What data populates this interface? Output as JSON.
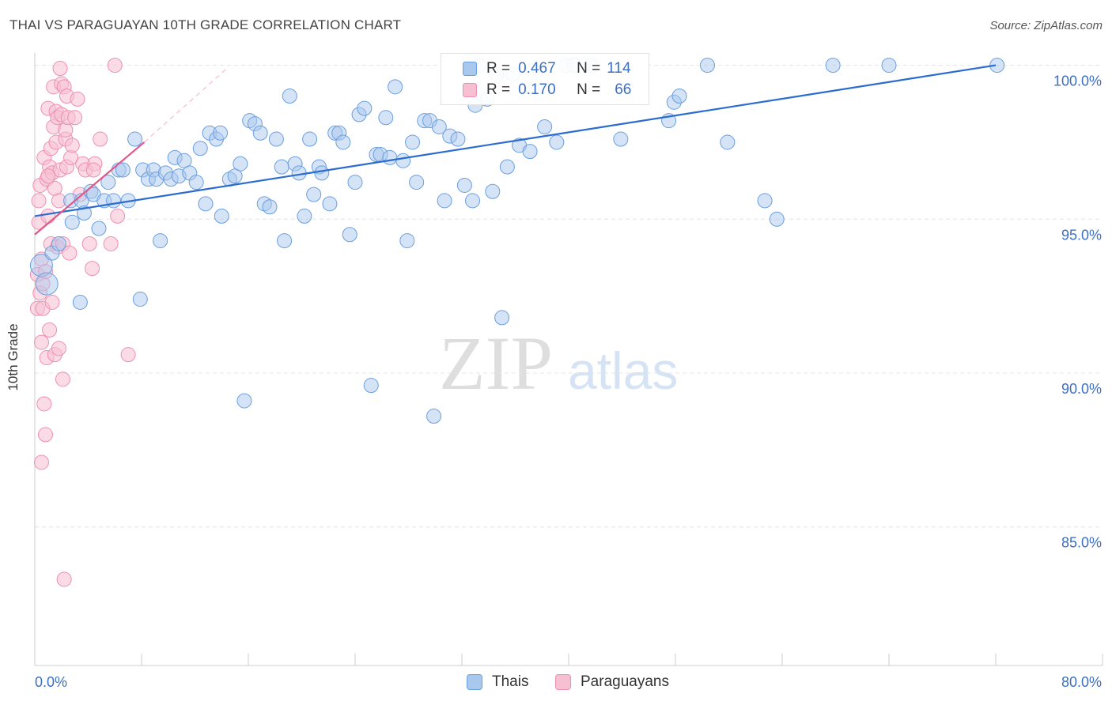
{
  "header": {
    "title": "THAI VS PARAGUAYAN 10TH GRADE CORRELATION CHART",
    "source": "Source: ZipAtlas.com"
  },
  "watermark": {
    "zip": "ZIP",
    "atlas": "atlas"
  },
  "colors": {
    "thai": "#6a9fdf",
    "thai_fill": "#a9c8ee",
    "thai_line": "#2a6ccf",
    "paraguayan": "#ee8fb0",
    "paraguayan_fill": "#f7bfd2",
    "paraguayan_line": "#e0588a",
    "axis_value": "#3c6fc4"
  },
  "legend": {
    "thai": {
      "r_label": "R =",
      "r_value": "0.467",
      "n_label": "N =",
      "n_value": "114"
    },
    "paraguayan": {
      "r_label": "R =",
      "r_value": "0.170",
      "n_label": "N =",
      "n_value": "66"
    }
  },
  "bottom_legend": {
    "thai": "Thais",
    "paraguayan": "Paraguayans"
  },
  "chart_data": {
    "type": "scatter",
    "title": "THAI VS PARAGUAYAN 10TH GRADE CORRELATION CHART",
    "xlabel": "",
    "ylabel": "10th Grade",
    "xlim": [
      0,
      80
    ],
    "ylim": [
      80.5,
      100.4
    ],
    "x_tick_labels": [
      "0.0%",
      "80.0%"
    ],
    "y_ticks": [
      100,
      95,
      90,
      85
    ],
    "y_tick_labels": [
      "100.0%",
      "95.0%",
      "90.0%",
      "85.0%"
    ],
    "grid": true,
    "legend_position": "top-center",
    "series": [
      {
        "name": "Thais",
        "r": 0.467,
        "n": 114,
        "trend": {
          "x": [
            0.0,
            72.0
          ],
          "y": [
            95.1,
            100.0
          ]
        },
        "points": [
          [
            0.5,
            93.5
          ],
          [
            0.9,
            92.9
          ],
          [
            1.3,
            93.9
          ],
          [
            1.8,
            94.2
          ],
          [
            2.7,
            95.6
          ],
          [
            2.8,
            94.9
          ],
          [
            3.4,
            92.3
          ],
          [
            3.5,
            95.6
          ],
          [
            3.7,
            95.2
          ],
          [
            4.2,
            95.9
          ],
          [
            4.4,
            95.8
          ],
          [
            4.8,
            94.7
          ],
          [
            5.2,
            95.6
          ],
          [
            5.5,
            96.2
          ],
          [
            5.9,
            95.6
          ],
          [
            6.3,
            96.6
          ],
          [
            6.6,
            96.6
          ],
          [
            7.0,
            95.6
          ],
          [
            7.5,
            97.6
          ],
          [
            7.9,
            92.4
          ],
          [
            8.1,
            96.6
          ],
          [
            8.5,
            96.3
          ],
          [
            8.9,
            96.6
          ],
          [
            9.1,
            96.3
          ],
          [
            9.4,
            94.3
          ],
          [
            9.8,
            96.5
          ],
          [
            10.2,
            96.3
          ],
          [
            10.5,
            97.0
          ],
          [
            10.8,
            96.4
          ],
          [
            11.2,
            96.9
          ],
          [
            11.6,
            96.5
          ],
          [
            12.1,
            96.2
          ],
          [
            12.4,
            97.3
          ],
          [
            12.8,
            95.5
          ],
          [
            13.1,
            97.8
          ],
          [
            13.6,
            97.6
          ],
          [
            13.9,
            97.8
          ],
          [
            14.0,
            95.1
          ],
          [
            14.6,
            96.3
          ],
          [
            15.0,
            96.4
          ],
          [
            15.4,
            96.8
          ],
          [
            15.7,
            89.1
          ],
          [
            16.1,
            98.2
          ],
          [
            16.5,
            98.1
          ],
          [
            16.9,
            97.8
          ],
          [
            17.2,
            95.5
          ],
          [
            17.6,
            95.4
          ],
          [
            18.1,
            97.6
          ],
          [
            18.5,
            96.7
          ],
          [
            18.7,
            94.3
          ],
          [
            19.1,
            99.0
          ],
          [
            19.5,
            96.8
          ],
          [
            19.8,
            96.5
          ],
          [
            20.2,
            95.1
          ],
          [
            20.6,
            97.6
          ],
          [
            20.9,
            95.8
          ],
          [
            21.3,
            96.7
          ],
          [
            21.5,
            96.5
          ],
          [
            22.1,
            95.5
          ],
          [
            22.5,
            97.8
          ],
          [
            22.8,
            97.8
          ],
          [
            23.1,
            97.5
          ],
          [
            23.6,
            94.5
          ],
          [
            24.0,
            96.2
          ],
          [
            24.3,
            98.4
          ],
          [
            24.7,
            98.6
          ],
          [
            25.2,
            89.6
          ],
          [
            25.6,
            97.1
          ],
          [
            25.9,
            97.1
          ],
          [
            26.3,
            98.3
          ],
          [
            26.6,
            97.0
          ],
          [
            27.0,
            99.3
          ],
          [
            27.6,
            96.9
          ],
          [
            27.9,
            94.3
          ],
          [
            28.3,
            97.5
          ],
          [
            28.6,
            96.2
          ],
          [
            29.2,
            98.2
          ],
          [
            29.6,
            98.2
          ],
          [
            29.9,
            88.6
          ],
          [
            30.3,
            98.0
          ],
          [
            30.7,
            95.6
          ],
          [
            31.1,
            97.7
          ],
          [
            31.7,
            97.6
          ],
          [
            32.2,
            96.1
          ],
          [
            32.8,
            95.6
          ],
          [
            33.0,
            98.7
          ],
          [
            33.3,
            100.0
          ],
          [
            33.9,
            98.9
          ],
          [
            34.3,
            95.9
          ],
          [
            34.6,
            99.7
          ],
          [
            35.0,
            91.8
          ],
          [
            35.4,
            96.7
          ],
          [
            35.8,
            99.7
          ],
          [
            36.3,
            97.4
          ],
          [
            37.1,
            97.2
          ],
          [
            38.2,
            98.0
          ],
          [
            39.1,
            97.5
          ],
          [
            39.8,
            100.0
          ],
          [
            40.4,
            100.0
          ],
          [
            41.7,
            100.0
          ],
          [
            43.9,
            97.6
          ],
          [
            47.5,
            98.2
          ],
          [
            47.9,
            98.8
          ],
          [
            48.3,
            99.0
          ],
          [
            50.4,
            100.0
          ],
          [
            51.9,
            97.5
          ],
          [
            54.7,
            95.6
          ],
          [
            55.6,
            95.0
          ],
          [
            59.8,
            100.0
          ],
          [
            72.1,
            100.0
          ],
          [
            64.0,
            100.0
          ],
          [
            37.6,
            99.3
          ]
        ]
      },
      {
        "name": "Paraguayans",
        "r": 0.17,
        "n": 66,
        "trend": {
          "x": [
            0.0,
            8.2
          ],
          "y": [
            94.5,
            97.5
          ]
        },
        "trend_extension": {
          "x": [
            8.2,
            14.4
          ],
          "y": [
            97.5,
            99.9
          ]
        },
        "points": [
          [
            0.2,
            93.2
          ],
          [
            0.2,
            92.1
          ],
          [
            0.3,
            94.9
          ],
          [
            0.3,
            95.6
          ],
          [
            0.4,
            96.1
          ],
          [
            0.4,
            92.6
          ],
          [
            0.5,
            93.7
          ],
          [
            0.5,
            91.0
          ],
          [
            0.6,
            92.1
          ],
          [
            0.6,
            92.9
          ],
          [
            0.7,
            97.0
          ],
          [
            0.7,
            89.0
          ],
          [
            0.8,
            93.3
          ],
          [
            0.8,
            88.0
          ],
          [
            0.9,
            96.3
          ],
          [
            0.9,
            90.5
          ],
          [
            1.0,
            98.6
          ],
          [
            1.0,
            95.1
          ],
          [
            1.1,
            96.7
          ],
          [
            1.1,
            91.4
          ],
          [
            1.2,
            97.3
          ],
          [
            1.2,
            94.2
          ],
          [
            1.3,
            96.5
          ],
          [
            1.3,
            92.3
          ],
          [
            1.4,
            99.3
          ],
          [
            1.4,
            98.0
          ],
          [
            1.5,
            96.0
          ],
          [
            1.5,
            90.6
          ],
          [
            1.6,
            98.5
          ],
          [
            1.6,
            97.5
          ],
          [
            1.7,
            98.3
          ],
          [
            1.7,
            94.1
          ],
          [
            1.8,
            95.6
          ],
          [
            1.8,
            90.8
          ],
          [
            1.9,
            99.9
          ],
          [
            1.9,
            96.6
          ],
          [
            2.0,
            98.4
          ],
          [
            2.0,
            99.4
          ],
          [
            2.1,
            94.2
          ],
          [
            2.1,
            89.8
          ],
          [
            2.2,
            99.3
          ],
          [
            2.2,
            83.3
          ],
          [
            2.3,
            97.6
          ],
          [
            2.3,
            97.9
          ],
          [
            2.4,
            99.0
          ],
          [
            2.4,
            96.7
          ],
          [
            2.5,
            98.3
          ],
          [
            2.6,
            93.9
          ],
          [
            2.7,
            97.0
          ],
          [
            2.8,
            97.4
          ],
          [
            3.0,
            98.3
          ],
          [
            3.2,
            98.9
          ],
          [
            3.4,
            95.8
          ],
          [
            3.6,
            96.8
          ],
          [
            3.8,
            96.6
          ],
          [
            4.1,
            94.2
          ],
          [
            4.3,
            93.4
          ],
          [
            4.5,
            96.8
          ],
          [
            4.4,
            96.6
          ],
          [
            4.9,
            97.6
          ],
          [
            5.7,
            94.2
          ],
          [
            6.0,
            100.0
          ],
          [
            6.2,
            95.1
          ],
          [
            7.0,
            90.6
          ],
          [
            0.5,
            87.1
          ],
          [
            1.0,
            96.4
          ]
        ]
      }
    ]
  }
}
